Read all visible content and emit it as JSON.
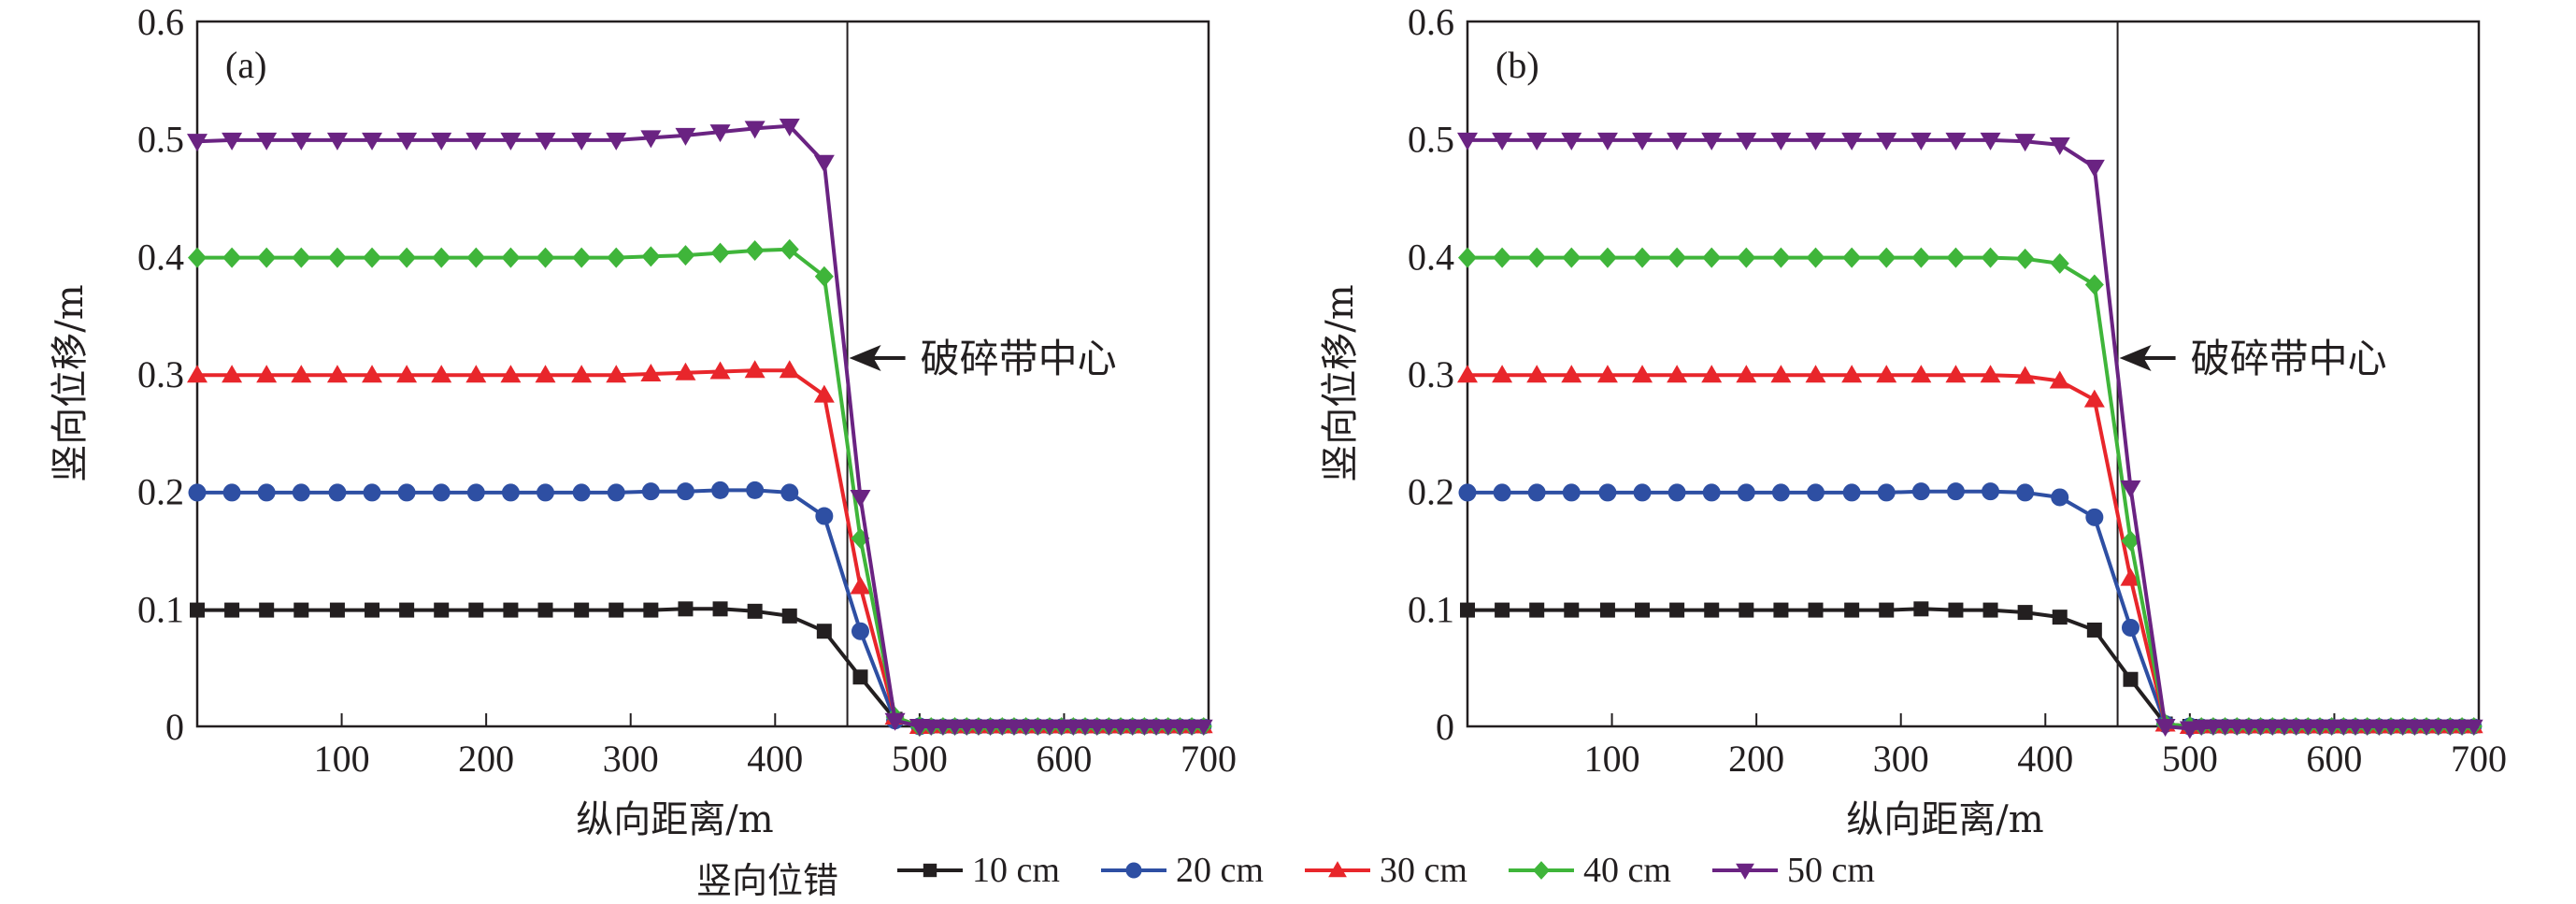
{
  "chart_data": [
    {
      "type": "line",
      "panel_label": "(a)",
      "xlabel": "纵向距离/m",
      "ylabel": "竖向位移/m",
      "xlim": [
        0,
        700
      ],
      "ylim": [
        0,
        0.6
      ],
      "xticks": [
        100,
        200,
        300,
        400,
        500,
        600,
        700
      ],
      "yticks": [
        0,
        0.1,
        0.2,
        0.3,
        0.4,
        0.5,
        0.6
      ],
      "ytick_labels": [
        "0",
        "0.1",
        "0.2",
        "0.3",
        "0.4",
        "0.5",
        "0.6"
      ],
      "grid": false,
      "reference_line": {
        "x": 450,
        "label": "破碎带中心"
      },
      "series": [
        {
          "name": "10 cm",
          "x": [
            0,
            24,
            48,
            72,
            97,
            121,
            145,
            169,
            193,
            217,
            241,
            266,
            290,
            314,
            338,
            362,
            386,
            410,
            434,
            459,
            483,
            500,
            520,
            540,
            560,
            580,
            600,
            620,
            640,
            660,
            680,
            700
          ],
          "values": [
            0.099,
            0.099,
            0.099,
            0.099,
            0.099,
            0.099,
            0.099,
            0.099,
            0.099,
            0.099,
            0.099,
            0.099,
            0.099,
            0.099,
            0.1,
            0.1,
            0.098,
            0.094,
            0.081,
            0.042,
            0.006,
            0.0,
            0.0,
            0.0,
            0.0,
            0.0,
            0.0,
            0.0,
            0.0,
            0.0,
            0.0,
            0.0
          ]
        },
        {
          "name": "20 cm",
          "x": [
            0,
            24,
            48,
            72,
            97,
            121,
            145,
            169,
            193,
            217,
            241,
            266,
            290,
            314,
            338,
            362,
            386,
            410,
            434,
            459,
            483,
            500,
            520,
            540,
            560,
            580,
            600,
            620,
            640,
            660,
            680,
            700
          ],
          "values": [
            0.199,
            0.199,
            0.199,
            0.199,
            0.199,
            0.199,
            0.199,
            0.199,
            0.199,
            0.199,
            0.199,
            0.199,
            0.199,
            0.2,
            0.2,
            0.201,
            0.201,
            0.199,
            0.179,
            0.081,
            0.005,
            0.0,
            0.0,
            0.0,
            0.0,
            0.0,
            0.0,
            0.0,
            0.0,
            0.0,
            0.0,
            0.0
          ]
        },
        {
          "name": "30 cm",
          "x": [
            0,
            24,
            48,
            72,
            97,
            121,
            145,
            169,
            193,
            217,
            241,
            266,
            290,
            314,
            338,
            362,
            386,
            410,
            434,
            459,
            483,
            500,
            520,
            540,
            560,
            580,
            600,
            620,
            640,
            660,
            680,
            700
          ],
          "values": [
            0.299,
            0.299,
            0.299,
            0.299,
            0.299,
            0.299,
            0.299,
            0.299,
            0.299,
            0.299,
            0.299,
            0.299,
            0.299,
            0.3,
            0.301,
            0.302,
            0.303,
            0.303,
            0.282,
            0.119,
            0.008,
            0.0,
            0.0,
            0.0,
            0.0,
            0.0,
            0.0,
            0.0,
            0.0,
            0.0,
            0.0,
            0.0
          ]
        },
        {
          "name": "40 cm",
          "x": [
            0,
            24,
            48,
            72,
            97,
            121,
            145,
            169,
            193,
            217,
            241,
            266,
            290,
            314,
            338,
            362,
            386,
            410,
            434,
            459,
            483,
            500,
            520,
            540,
            560,
            580,
            600,
            620,
            640,
            660,
            680,
            700
          ],
          "values": [
            0.399,
            0.399,
            0.399,
            0.399,
            0.399,
            0.399,
            0.399,
            0.399,
            0.399,
            0.399,
            0.399,
            0.399,
            0.399,
            0.4,
            0.401,
            0.403,
            0.405,
            0.406,
            0.383,
            0.16,
            0.008,
            0.0,
            0.0,
            0.0,
            0.0,
            0.0,
            0.0,
            0.0,
            0.0,
            0.0,
            0.0,
            0.0
          ]
        },
        {
          "name": "50 cm",
          "x": [
            0,
            24,
            48,
            72,
            97,
            121,
            145,
            169,
            193,
            217,
            241,
            266,
            290,
            314,
            338,
            362,
            386,
            410,
            434,
            459,
            483,
            500,
            520,
            540,
            560,
            580,
            600,
            620,
            640,
            660,
            680,
            700
          ],
          "values": [
            0.498,
            0.499,
            0.499,
            0.499,
            0.499,
            0.499,
            0.499,
            0.499,
            0.499,
            0.499,
            0.499,
            0.499,
            0.499,
            0.501,
            0.503,
            0.506,
            0.509,
            0.511,
            0.48,
            0.195,
            0.005,
            0.0,
            0.0,
            0.0,
            0.0,
            0.0,
            0.0,
            0.0,
            0.0,
            0.0,
            0.0,
            0.0
          ]
        }
      ]
    },
    {
      "type": "line",
      "panel_label": "(b)",
      "xlabel": "纵向距离/m",
      "ylabel": "竖向位移/m",
      "xlim": [
        0,
        700
      ],
      "ylim": [
        0,
        0.6
      ],
      "xticks": [
        100,
        200,
        300,
        400,
        500,
        600,
        700
      ],
      "yticks": [
        0,
        0.1,
        0.2,
        0.3,
        0.4,
        0.5,
        0.6
      ],
      "ytick_labels": [
        "0",
        "0.1",
        "0.2",
        "0.3",
        "0.4",
        "0.5",
        "0.6"
      ],
      "grid": false,
      "reference_line": {
        "x": 450,
        "label": "破碎带中心"
      },
      "series": [
        {
          "name": "10 cm",
          "x": [
            0,
            24,
            48,
            72,
            97,
            121,
            145,
            169,
            193,
            217,
            241,
            266,
            290,
            314,
            338,
            362,
            386,
            410,
            434,
            459,
            483,
            500,
            520,
            540,
            560,
            580,
            600,
            620,
            640,
            660,
            680,
            700
          ],
          "values": [
            0.099,
            0.099,
            0.099,
            0.099,
            0.099,
            0.099,
            0.099,
            0.099,
            0.099,
            0.099,
            0.099,
            0.099,
            0.099,
            0.1,
            0.099,
            0.099,
            0.097,
            0.093,
            0.082,
            0.04,
            0.002,
            0.0,
            0.0,
            0.0,
            0.0,
            0.0,
            0.0,
            0.0,
            0.0,
            0.0,
            0.0,
            0.0
          ]
        },
        {
          "name": "20 cm",
          "x": [
            0,
            24,
            48,
            72,
            97,
            121,
            145,
            169,
            193,
            217,
            241,
            266,
            290,
            314,
            338,
            362,
            386,
            410,
            434,
            459,
            483,
            500,
            520,
            540,
            560,
            580,
            600,
            620,
            640,
            660,
            680,
            700
          ],
          "values": [
            0.199,
            0.199,
            0.199,
            0.199,
            0.199,
            0.199,
            0.199,
            0.199,
            0.199,
            0.199,
            0.199,
            0.199,
            0.199,
            0.2,
            0.2,
            0.2,
            0.199,
            0.195,
            0.178,
            0.084,
            0.002,
            0.0,
            0.0,
            0.0,
            0.0,
            0.0,
            0.0,
            0.0,
            0.0,
            0.0,
            0.0,
            0.0
          ]
        },
        {
          "name": "30 cm",
          "x": [
            0,
            24,
            48,
            72,
            97,
            121,
            145,
            169,
            193,
            217,
            241,
            266,
            290,
            314,
            338,
            362,
            386,
            410,
            434,
            459,
            483,
            500,
            520,
            540,
            560,
            580,
            600,
            620,
            640,
            660,
            680,
            700
          ],
          "values": [
            0.299,
            0.299,
            0.299,
            0.299,
            0.299,
            0.299,
            0.299,
            0.299,
            0.299,
            0.299,
            0.299,
            0.299,
            0.299,
            0.299,
            0.299,
            0.299,
            0.298,
            0.294,
            0.278,
            0.126,
            0.002,
            0.0,
            0.0,
            0.0,
            0.0,
            0.0,
            0.0,
            0.0,
            0.0,
            0.0,
            0.0,
            0.0
          ]
        },
        {
          "name": "40 cm",
          "x": [
            0,
            24,
            48,
            72,
            97,
            121,
            145,
            169,
            193,
            217,
            241,
            266,
            290,
            314,
            338,
            362,
            386,
            410,
            434,
            459,
            483,
            500,
            520,
            540,
            560,
            580,
            600,
            620,
            640,
            660,
            680,
            700
          ],
          "values": [
            0.399,
            0.399,
            0.399,
            0.399,
            0.399,
            0.399,
            0.399,
            0.399,
            0.399,
            0.399,
            0.399,
            0.399,
            0.399,
            0.399,
            0.399,
            0.399,
            0.398,
            0.394,
            0.376,
            0.158,
            0.002,
            0.0,
            0.0,
            0.0,
            0.0,
            0.0,
            0.0,
            0.0,
            0.0,
            0.0,
            0.0,
            0.0
          ]
        },
        {
          "name": "50 cm",
          "x": [
            0,
            24,
            48,
            72,
            97,
            121,
            145,
            169,
            193,
            217,
            241,
            266,
            290,
            314,
            338,
            362,
            386,
            410,
            434,
            459,
            483,
            500,
            520,
            540,
            560,
            580,
            600,
            620,
            640,
            660,
            680,
            700
          ],
          "values": [
            0.499,
            0.499,
            0.499,
            0.499,
            0.499,
            0.499,
            0.499,
            0.499,
            0.499,
            0.499,
            0.499,
            0.499,
            0.499,
            0.499,
            0.499,
            0.499,
            0.498,
            0.495,
            0.476,
            0.203,
            0.0,
            -0.002,
            0.0,
            0.0,
            0.0,
            0.0,
            0.0,
            0.0,
            0.0,
            0.0,
            0.0,
            0.0
          ]
        }
      ]
    }
  ],
  "legend": {
    "title": "竖向位错",
    "placement": "bottom-center",
    "items": [
      {
        "name": "10 cm",
        "color": "#231f20",
        "marker": "square"
      },
      {
        "name": "20 cm",
        "color": "#2e4fa3",
        "marker": "circle"
      },
      {
        "name": "30 cm",
        "color": "#e8262b",
        "marker": "triangle-up"
      },
      {
        "name": "40 cm",
        "color": "#3fb53a",
        "marker": "diamond"
      },
      {
        "name": "50 cm",
        "color": "#6a2382",
        "marker": "triangle-down"
      }
    ]
  }
}
